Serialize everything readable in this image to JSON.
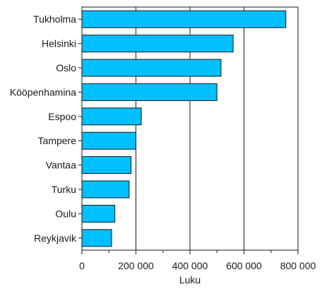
{
  "chart_data": {
    "type": "bar",
    "orientation": "horizontal",
    "categories": [
      "Tukholma",
      "Helsinki",
      "Oslo",
      "Kööpenhamina",
      "Espoo",
      "Tampere",
      "Vantaa",
      "Turku",
      "Oulu",
      "Reykjavik"
    ],
    "values": [
      755000,
      560000,
      515000,
      500000,
      220000,
      200000,
      182000,
      175000,
      122000,
      110000
    ],
    "xlabel": "Luku",
    "ylabel": "",
    "xlim": [
      0,
      800000
    ],
    "xticks": [
      0,
      200000,
      400000,
      600000,
      800000
    ],
    "xtick_labels": [
      "0",
      "200 000",
      "400 000",
      "600 000",
      "800 000"
    ],
    "grid": "vertical",
    "colors": {
      "bar_fill": "#00bfff",
      "bar_stroke": "#1a1a1a",
      "grid": "#1a1a1a",
      "axis": "#1a1a1a"
    }
  }
}
